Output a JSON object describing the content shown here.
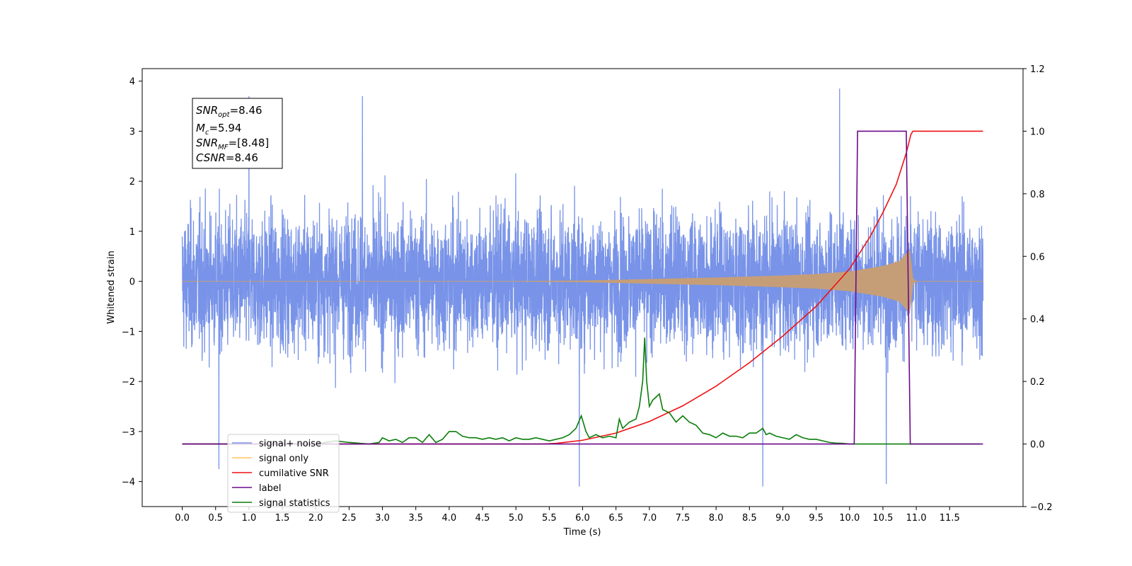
{
  "chart_data": {
    "type": "line",
    "title": "",
    "xlabel": "Time (s)",
    "ylabel_left": "Whitened strain",
    "ylabel_right": "",
    "xlim": [
      -0.6,
      12.6
    ],
    "ylim_left": [
      -4.5,
      4.25
    ],
    "ylim_right": [
      -0.2,
      1.2
    ],
    "x_ticks": [
      "0.0",
      "0.5",
      "1.0",
      "1.5",
      "2.0",
      "2.5",
      "3.0",
      "3.5",
      "4.0",
      "4.5",
      "5.0",
      "5.5",
      "6.0",
      "6.5",
      "7.0",
      "7.5",
      "8.0",
      "8.5",
      "9.0",
      "9.5",
      "10.0",
      "10.5",
      "11.0",
      "11.5"
    ],
    "y_ticks_left": [
      "4",
      "3",
      "2",
      "1",
      "0",
      "−1",
      "−2",
      "−3",
      "−4"
    ],
    "y_ticks_right": [
      "1.2",
      "1.0",
      "0.8",
      "0.6",
      "0.4",
      "0.2",
      "0.0",
      "−0.2"
    ],
    "grid": false,
    "legend_position": "lower-left",
    "legend": [
      {
        "label": "signal+ noise",
        "color": "#7893e8"
      },
      {
        "label": "signal only",
        "color": "#ffc266"
      },
      {
        "label": "cumilative SNR",
        "color": "#ee1111"
      },
      {
        "label": "label",
        "color": "#6c0a8a"
      },
      {
        "label": "signal statistics",
        "color": "#0a7d0a"
      }
    ],
    "stats_box": {
      "snr_opt": "8.46",
      "mc": "5.94",
      "snr_mf": "[8.48]",
      "csnr": "8.46"
    },
    "series": [
      {
        "name": "signal+ noise",
        "axis": "left",
        "color": "#7893e8",
        "x_range": [
          0.0,
          12.0
        ],
        "typical_amplitude": [
          -2.2,
          2.5
        ],
        "extremes": [
          [
            1.0,
            3.7
          ],
          [
            2.7,
            3.7
          ],
          [
            9.85,
            3.85
          ],
          [
            0.55,
            -3.75
          ],
          [
            5.95,
            -4.1
          ],
          [
            8.7,
            -4.1
          ],
          [
            10.55,
            -4.05
          ]
        ]
      },
      {
        "name": "signal only",
        "axis": "left",
        "color": "#c59e78",
        "envelope": [
          [
            0.0,
            0.0
          ],
          [
            5.0,
            0.0
          ],
          [
            6.0,
            0.01
          ],
          [
            7.0,
            0.04
          ],
          [
            8.0,
            0.07
          ],
          [
            9.0,
            0.11
          ],
          [
            9.5,
            0.14
          ],
          [
            10.0,
            0.19
          ],
          [
            10.5,
            0.3
          ],
          [
            10.75,
            0.4
          ],
          [
            10.85,
            0.55
          ],
          [
            10.9,
            0.62
          ],
          [
            10.95,
            0.05
          ],
          [
            11.0,
            0.0
          ],
          [
            12.0,
            0.0
          ]
        ]
      },
      {
        "name": "cumilative SNR",
        "axis": "right",
        "color": "#ee1111",
        "x": [
          0.0,
          5.4,
          5.6,
          6.0,
          6.5,
          7.0,
          7.5,
          8.0,
          8.5,
          9.0,
          9.5,
          10.0,
          10.3,
          10.5,
          10.7,
          10.85,
          10.92,
          10.95,
          12.0
        ],
        "y": [
          0.0,
          0.0,
          0.002,
          0.012,
          0.035,
          0.072,
          0.122,
          0.185,
          0.26,
          0.345,
          0.44,
          0.56,
          0.66,
          0.74,
          0.83,
          0.93,
          0.99,
          1.0,
          1.0
        ]
      },
      {
        "name": "label",
        "axis": "right",
        "color": "#6c0a8a",
        "x": [
          0.0,
          10.07,
          10.12,
          10.85,
          10.91,
          12.0
        ],
        "y": [
          0.0,
          0.0,
          1.0,
          1.0,
          0.0,
          0.0
        ]
      },
      {
        "name": "signal statistics",
        "axis": "right",
        "color": "#0a7d0a",
        "x": [
          0.0,
          0.5,
          1.0,
          1.5,
          2.0,
          2.3,
          2.5,
          2.8,
          2.95,
          3.0,
          3.1,
          3.2,
          3.3,
          3.4,
          3.5,
          3.6,
          3.7,
          3.8,
          3.9,
          4.0,
          4.1,
          4.2,
          4.3,
          4.4,
          4.5,
          4.6,
          4.7,
          4.8,
          4.9,
          5.0,
          5.1,
          5.2,
          5.3,
          5.4,
          5.5,
          5.6,
          5.7,
          5.8,
          5.9,
          5.98,
          6.05,
          6.1,
          6.2,
          6.3,
          6.4,
          6.5,
          6.55,
          6.6,
          6.7,
          6.8,
          6.85,
          6.9,
          6.93,
          6.96,
          7.0,
          7.05,
          7.1,
          7.15,
          7.2,
          7.3,
          7.4,
          7.5,
          7.6,
          7.7,
          7.8,
          7.9,
          8.0,
          8.1,
          8.2,
          8.3,
          8.4,
          8.5,
          8.6,
          8.7,
          8.75,
          8.8,
          8.9,
          9.0,
          9.1,
          9.2,
          9.3,
          9.4,
          9.5,
          9.6,
          9.7,
          9.8,
          9.9,
          10.0,
          10.5,
          11.0,
          11.5,
          11.95
        ],
        "y": [
          0.0,
          0.0,
          0.0,
          0.0,
          0.0,
          0.01,
          0.005,
          0.0,
          0.005,
          0.02,
          0.01,
          0.015,
          0.005,
          0.02,
          0.02,
          0.005,
          0.03,
          0.005,
          0.015,
          0.04,
          0.04,
          0.025,
          0.02,
          0.02,
          0.015,
          0.02,
          0.015,
          0.02,
          0.01,
          0.02,
          0.015,
          0.015,
          0.02,
          0.015,
          0.01,
          0.015,
          0.02,
          0.03,
          0.05,
          0.09,
          0.04,
          0.02,
          0.03,
          0.02,
          0.025,
          0.02,
          0.08,
          0.05,
          0.07,
          0.08,
          0.12,
          0.2,
          0.34,
          0.2,
          0.12,
          0.14,
          0.15,
          0.16,
          0.11,
          0.1,
          0.07,
          0.09,
          0.07,
          0.06,
          0.035,
          0.03,
          0.02,
          0.035,
          0.025,
          0.025,
          0.02,
          0.035,
          0.035,
          0.05,
          0.03,
          0.035,
          0.025,
          0.02,
          0.015,
          0.03,
          0.02,
          0.015,
          0.015,
          0.01,
          0.005,
          0.003,
          0.002,
          0.0,
          0.0,
          0.0,
          0.0,
          0.0
        ]
      }
    ]
  }
}
